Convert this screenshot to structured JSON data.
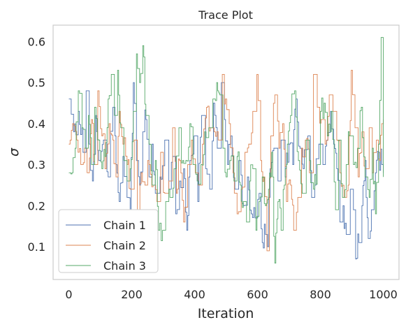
{
  "chart_data": {
    "type": "line",
    "title": "Trace Plot",
    "xlabel": "Iteration",
    "ylabel": "σ",
    "xlim": [
      -50,
      1050
    ],
    "ylim": [
      0.02,
      0.64
    ],
    "xticks": [
      0,
      200,
      400,
      600,
      800,
      1000
    ],
    "yticks": [
      0.1,
      0.2,
      0.3,
      0.4,
      0.5,
      0.6
    ],
    "grid": false,
    "legend_position": "lower-left",
    "n_iterations": 1001,
    "series": [
      {
        "name": "Chain 1",
        "color": "#4c72b0",
        "knots": [
          [
            0,
            0.46
          ],
          [
            15,
            0.38
          ],
          [
            30,
            0.43
          ],
          [
            45,
            0.33
          ],
          [
            55,
            0.48
          ],
          [
            65,
            0.35
          ],
          [
            75,
            0.26
          ],
          [
            85,
            0.42
          ],
          [
            95,
            0.31
          ],
          [
            110,
            0.36
          ],
          [
            125,
            0.27
          ],
          [
            140,
            0.44
          ],
          [
            150,
            0.3
          ],
          [
            160,
            0.21
          ],
          [
            172,
            0.32
          ],
          [
            185,
            0.22
          ],
          [
            195,
            0.19
          ],
          [
            205,
            0.5
          ],
          [
            215,
            0.31
          ],
          [
            225,
            0.25
          ],
          [
            235,
            0.38
          ],
          [
            245,
            0.41
          ],
          [
            255,
            0.27
          ],
          [
            265,
            0.35
          ],
          [
            275,
            0.23
          ],
          [
            290,
            0.27
          ],
          [
            305,
            0.36
          ],
          [
            318,
            0.24
          ],
          [
            330,
            0.32
          ],
          [
            340,
            0.18
          ],
          [
            352,
            0.26
          ],
          [
            365,
            0.29
          ],
          [
            375,
            0.14
          ],
          [
            385,
            0.31
          ],
          [
            398,
            0.37
          ],
          [
            410,
            0.21
          ],
          [
            422,
            0.42
          ],
          [
            435,
            0.29
          ],
          [
            448,
            0.24
          ],
          [
            460,
            0.45
          ],
          [
            472,
            0.34
          ],
          [
            485,
            0.5
          ],
          [
            495,
            0.41
          ],
          [
            505,
            0.3
          ],
          [
            515,
            0.37
          ],
          [
            528,
            0.24
          ],
          [
            540,
            0.31
          ],
          [
            555,
            0.2
          ],
          [
            568,
            0.27
          ],
          [
            580,
            0.18
          ],
          [
            592,
            0.17
          ],
          [
            605,
            0.23
          ],
          [
            615,
            0.11
          ],
          [
            625,
            0.13
          ],
          [
            632,
            0.1
          ],
          [
            640,
            0.29
          ],
          [
            652,
            0.34
          ],
          [
            665,
            0.26
          ],
          [
            675,
            0.36
          ],
          [
            688,
            0.27
          ],
          [
            700,
            0.35
          ],
          [
            712,
            0.3
          ],
          [
            722,
            0.46
          ],
          [
            735,
            0.34
          ],
          [
            745,
            0.29
          ],
          [
            760,
            0.37
          ],
          [
            772,
            0.22
          ],
          [
            782,
            0.25
          ],
          [
            795,
            0.35
          ],
          [
            808,
            0.3
          ],
          [
            820,
            0.36
          ],
          [
            832,
            0.43
          ],
          [
            842,
            0.35
          ],
          [
            852,
            0.29
          ],
          [
            862,
            0.16
          ],
          [
            872,
            0.2
          ],
          [
            882,
            0.13
          ],
          [
            895,
            0.24
          ],
          [
            905,
            0.19
          ],
          [
            912,
            0.07
          ],
          [
            922,
            0.11
          ],
          [
            932,
            0.2
          ],
          [
            942,
            0.31
          ],
          [
            952,
            0.12
          ],
          [
            962,
            0.19
          ],
          [
            975,
            0.28
          ],
          [
            985,
            0.33
          ],
          [
            995,
            0.3
          ],
          [
            1000,
            0.28
          ]
        ]
      },
      {
        "name": "Chain 2",
        "color": "#dd8452",
        "knots": [
          [
            0,
            0.35
          ],
          [
            12,
            0.4
          ],
          [
            25,
            0.36
          ],
          [
            38,
            0.3
          ],
          [
            50,
            0.34
          ],
          [
            62,
            0.28
          ],
          [
            72,
            0.41
          ],
          [
            82,
            0.3
          ],
          [
            92,
            0.48
          ],
          [
            105,
            0.37
          ],
          [
            115,
            0.29
          ],
          [
            128,
            0.4
          ],
          [
            140,
            0.36
          ],
          [
            150,
            0.27
          ],
          [
            160,
            0.43
          ],
          [
            172,
            0.35
          ],
          [
            185,
            0.3
          ],
          [
            195,
            0.24
          ],
          [
            208,
            0.36
          ],
          [
            218,
            0.19
          ],
          [
            230,
            0.28
          ],
          [
            242,
            0.25
          ],
          [
            255,
            0.3
          ],
          [
            268,
            0.25
          ],
          [
            280,
            0.21
          ],
          [
            292,
            0.33
          ],
          [
            305,
            0.23
          ],
          [
            318,
            0.26
          ],
          [
            330,
            0.39
          ],
          [
            342,
            0.23
          ],
          [
            352,
            0.31
          ],
          [
            365,
            0.16
          ],
          [
            378,
            0.3
          ],
          [
            390,
            0.36
          ],
          [
            402,
            0.28
          ],
          [
            412,
            0.25
          ],
          [
            425,
            0.35
          ],
          [
            438,
            0.44
          ],
          [
            450,
            0.39
          ],
          [
            462,
            0.38
          ],
          [
            475,
            0.36
          ],
          [
            488,
            0.52
          ],
          [
            498,
            0.46
          ],
          [
            510,
            0.4
          ],
          [
            522,
            0.28
          ],
          [
            535,
            0.18
          ],
          [
            548,
            0.24
          ],
          [
            560,
            0.33
          ],
          [
            572,
            0.35
          ],
          [
            585,
            0.43
          ],
          [
            598,
            0.52
          ],
          [
            610,
            0.31
          ],
          [
            620,
            0.27
          ],
          [
            630,
            0.09
          ],
          [
            642,
            0.37
          ],
          [
            655,
            0.47
          ],
          [
            668,
            0.34
          ],
          [
            680,
            0.4
          ],
          [
            692,
            0.21
          ],
          [
            705,
            0.25
          ],
          [
            715,
            0.14
          ],
          [
            728,
            0.22
          ],
          [
            740,
            0.34
          ],
          [
            752,
            0.36
          ],
          [
            765,
            0.28
          ],
          [
            778,
            0.52
          ],
          [
            790,
            0.44
          ],
          [
            802,
            0.41
          ],
          [
            815,
            0.35
          ],
          [
            828,
            0.47
          ],
          [
            840,
            0.43
          ],
          [
            852,
            0.36
          ],
          [
            862,
            0.28
          ],
          [
            875,
            0.22
          ],
          [
            888,
            0.25
          ],
          [
            898,
            0.53
          ],
          [
            910,
            0.39
          ],
          [
            920,
            0.27
          ],
          [
            932,
            0.38
          ],
          [
            942,
            0.29
          ],
          [
            955,
            0.39
          ],
          [
            965,
            0.28
          ],
          [
            978,
            0.36
          ],
          [
            988,
            0.31
          ],
          [
            995,
            0.4
          ],
          [
            1000,
            0.41
          ]
        ]
      },
      {
        "name": "Chain 3",
        "color": "#55a868",
        "knots": [
          [
            0,
            0.28
          ],
          [
            10,
            0.28
          ],
          [
            20,
            0.34
          ],
          [
            30,
            0.48
          ],
          [
            42,
            0.39
          ],
          [
            52,
            0.34
          ],
          [
            62,
            0.42
          ],
          [
            72,
            0.3
          ],
          [
            82,
            0.44
          ],
          [
            95,
            0.36
          ],
          [
            105,
            0.29
          ],
          [
            115,
            0.32
          ],
          [
            125,
            0.46
          ],
          [
            135,
            0.52
          ],
          [
            145,
            0.42
          ],
          [
            155,
            0.53
          ],
          [
            165,
            0.39
          ],
          [
            175,
            0.31
          ],
          [
            185,
            0.26
          ],
          [
            195,
            0.29
          ],
          [
            205,
            0.43
          ],
          [
            215,
            0.57
          ],
          [
            225,
            0.5
          ],
          [
            235,
            0.59
          ],
          [
            245,
            0.42
          ],
          [
            255,
            0.35
          ],
          [
            265,
            0.25
          ],
          [
            275,
            0.31
          ],
          [
            285,
            0.14
          ],
          [
            298,
            0.14
          ],
          [
            308,
            0.21
          ],
          [
            318,
            0.24
          ],
          [
            328,
            0.22
          ],
          [
            338,
            0.29
          ],
          [
            350,
            0.39
          ],
          [
            362,
            0.31
          ],
          [
            372,
            0.31
          ],
          [
            385,
            0.4
          ],
          [
            395,
            0.3
          ],
          [
            408,
            0.26
          ],
          [
            420,
            0.3
          ],
          [
            432,
            0.38
          ],
          [
            445,
            0.39
          ],
          [
            458,
            0.46
          ],
          [
            470,
            0.5
          ],
          [
            480,
            0.47
          ],
          [
            490,
            0.34
          ],
          [
            500,
            0.27
          ],
          [
            512,
            0.31
          ],
          [
            525,
            0.26
          ],
          [
            535,
            0.32
          ],
          [
            545,
            0.25
          ],
          [
            555,
            0.21
          ],
          [
            565,
            0.16
          ],
          [
            575,
            0.26
          ],
          [
            585,
            0.29
          ],
          [
            595,
            0.14
          ],
          [
            605,
            0.21
          ],
          [
            615,
            0.27
          ],
          [
            625,
            0.2
          ],
          [
            635,
            0.24
          ],
          [
            645,
            0.33
          ],
          [
            655,
            0.06
          ],
          [
            665,
            0.21
          ],
          [
            675,
            0.14
          ],
          [
            685,
            0.25
          ],
          [
            695,
            0.35
          ],
          [
            705,
            0.42
          ],
          [
            718,
            0.48
          ],
          [
            730,
            0.31
          ],
          [
            742,
            0.23
          ],
          [
            755,
            0.36
          ],
          [
            765,
            0.31
          ],
          [
            778,
            0.24
          ],
          [
            790,
            0.3
          ],
          [
            800,
            0.43
          ],
          [
            812,
            0.45
          ],
          [
            822,
            0.37
          ],
          [
            835,
            0.43
          ],
          [
            848,
            0.19
          ],
          [
            858,
            0.36
          ],
          [
            870,
            0.22
          ],
          [
            882,
            0.3
          ],
          [
            892,
            0.37
          ],
          [
            905,
            0.3
          ],
          [
            918,
            0.34
          ],
          [
            930,
            0.44
          ],
          [
            942,
            0.27
          ],
          [
            955,
            0.22
          ],
          [
            965,
            0.34
          ],
          [
            975,
            0.18
          ],
          [
            985,
            0.35
          ],
          [
            993,
            0.61
          ],
          [
            1000,
            0.27
          ]
        ]
      }
    ]
  }
}
